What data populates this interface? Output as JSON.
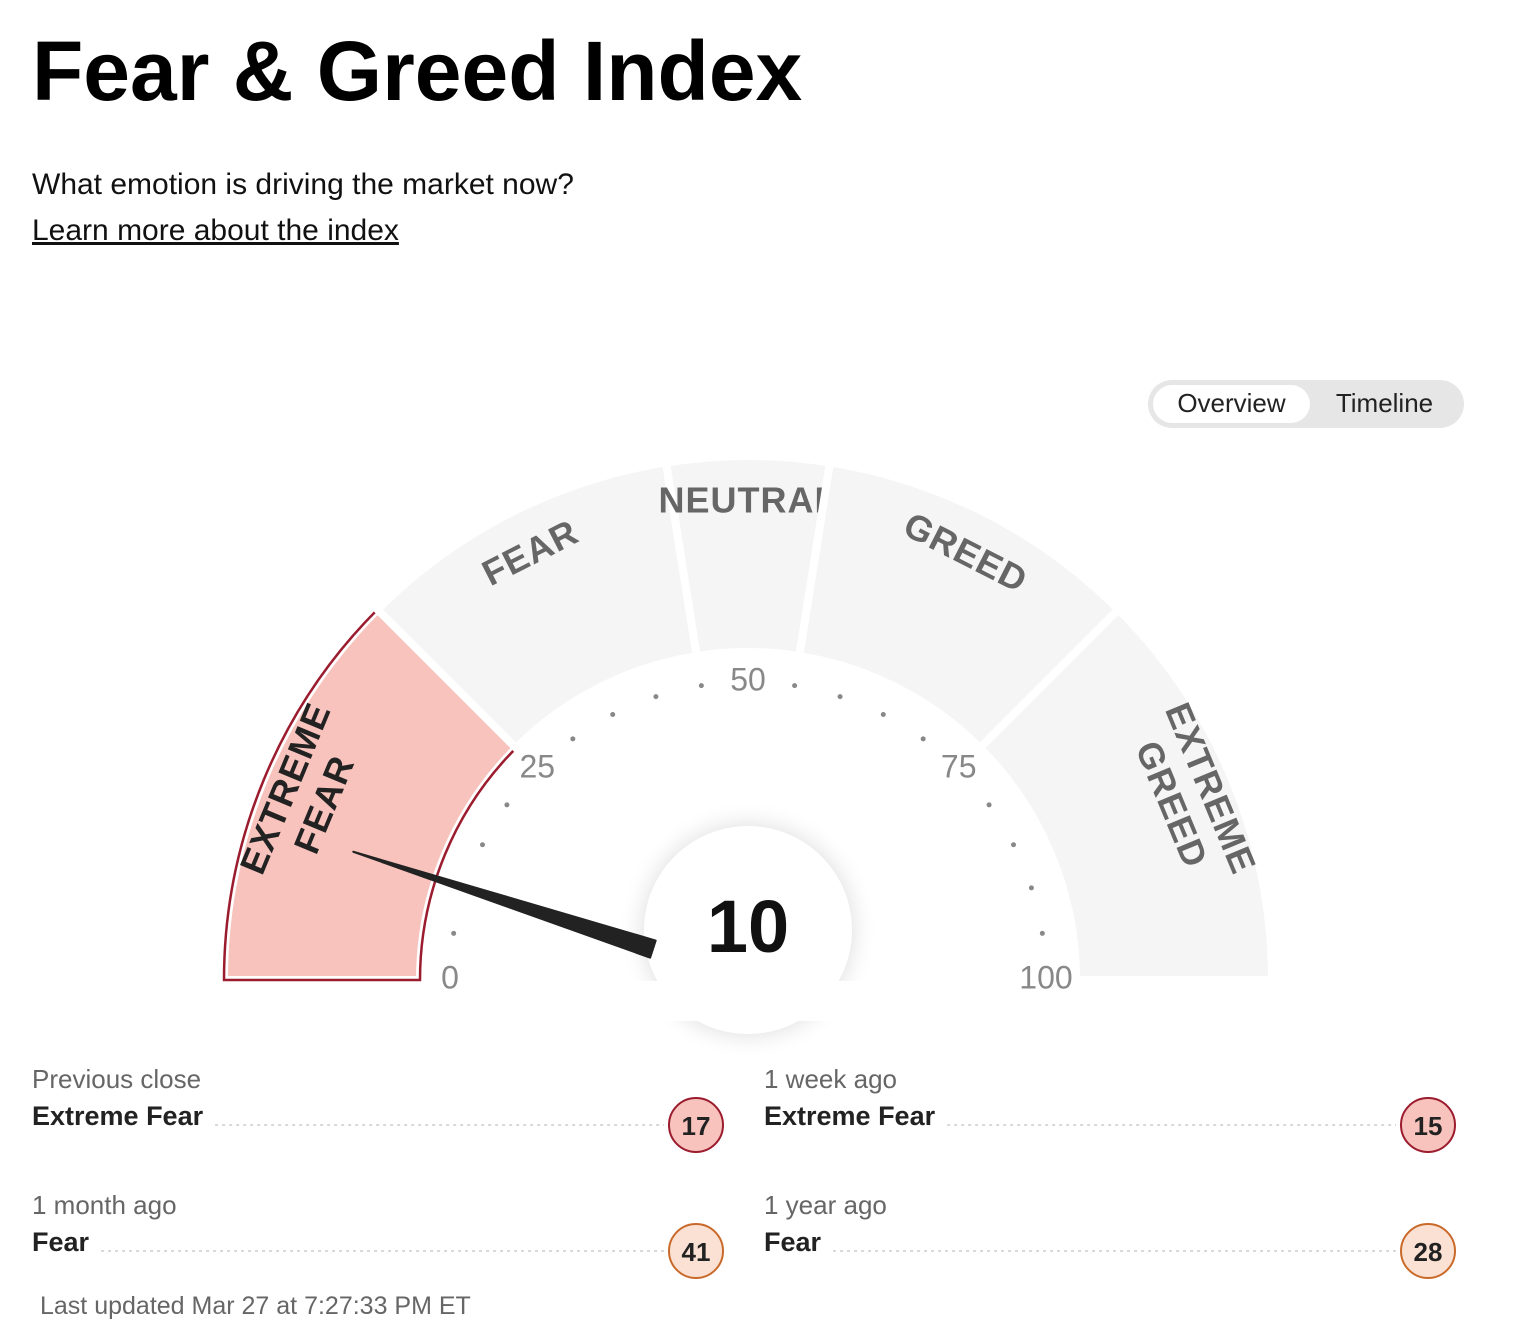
{
  "header": {
    "title": "Fear & Greed Index",
    "subtitle": "What emotion is driving the market now?",
    "link": "Learn more about the index"
  },
  "tabs": [
    {
      "label": "Overview",
      "active": true
    },
    {
      "label": "Timeline",
      "active": false
    }
  ],
  "gauge": {
    "value": 10,
    "range": [
      0,
      100
    ],
    "ticks": [
      0,
      25,
      50,
      75,
      100
    ],
    "minor_ticks": [
      5,
      10,
      15,
      20,
      30,
      35,
      40,
      45,
      55,
      60,
      65,
      70,
      80,
      85,
      90,
      95
    ],
    "bands": [
      {
        "lines": [
          "EXTREME",
          "FEAR"
        ],
        "from": 0,
        "to": 25,
        "fill": "#f7c3bc",
        "stroke": "#9b1c2e"
      },
      {
        "lines": [
          "FEAR"
        ],
        "from": 25,
        "to": 45,
        "fill": "#fbe1d3",
        "stroke": "#c96a2b"
      },
      {
        "lines": [
          "NEUTRAL"
        ],
        "from": 45,
        "to": 55
      },
      {
        "lines": [
          "GREED"
        ],
        "from": 55,
        "to": 75
      },
      {
        "lines": [
          "EXTREME",
          "GREED"
        ],
        "from": 75,
        "to": 100
      }
    ]
  },
  "history": [
    {
      "label": "Previous close",
      "rating": "Extreme Fear",
      "value": 17
    },
    {
      "label": "1 week ago",
      "rating": "Extreme Fear",
      "value": 15
    },
    {
      "label": "1 month ago",
      "rating": "Fear",
      "value": 41
    },
    {
      "label": "1 year ago",
      "rating": "Fear",
      "value": 28
    }
  ],
  "updated": "Last updated Mar 27 at 7:27:33 PM ET"
}
